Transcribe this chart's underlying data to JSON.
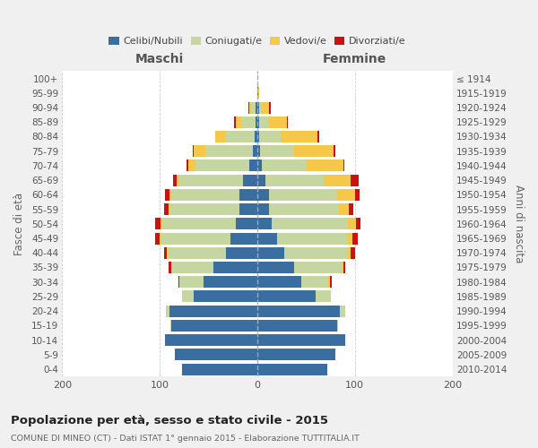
{
  "age_groups": [
    "0-4",
    "5-9",
    "10-14",
    "15-19",
    "20-24",
    "25-29",
    "30-34",
    "35-39",
    "40-44",
    "45-49",
    "50-54",
    "55-59",
    "60-64",
    "65-69",
    "70-74",
    "75-79",
    "80-84",
    "85-89",
    "90-94",
    "95-99",
    "100+"
  ],
  "birth_years": [
    "2010-2014",
    "2005-2009",
    "2000-2004",
    "1995-1999",
    "1990-1994",
    "1985-1989",
    "1980-1984",
    "1975-1979",
    "1970-1974",
    "1965-1969",
    "1960-1964",
    "1955-1959",
    "1950-1954",
    "1945-1949",
    "1940-1944",
    "1935-1939",
    "1930-1934",
    "1925-1929",
    "1920-1924",
    "1915-1919",
    "≤ 1914"
  ],
  "maschi": {
    "celibi": [
      77,
      85,
      95,
      88,
      90,
      65,
      55,
      45,
      32,
      28,
      22,
      18,
      18,
      15,
      8,
      5,
      3,
      2,
      2,
      0,
      0
    ],
    "coniugati": [
      0,
      0,
      0,
      1,
      3,
      12,
      25,
      42,
      60,
      70,
      75,
      72,
      70,
      65,
      55,
      48,
      30,
      15,
      4,
      0,
      0
    ],
    "vedovi": [
      0,
      0,
      0,
      0,
      1,
      0,
      0,
      1,
      1,
      2,
      2,
      1,
      2,
      3,
      8,
      12,
      10,
      5,
      2,
      0,
      0
    ],
    "divorziati": [
      0,
      0,
      0,
      0,
      0,
      0,
      1,
      3,
      3,
      5,
      6,
      5,
      5,
      3,
      2,
      1,
      0,
      2,
      1,
      0,
      0
    ]
  },
  "femmine": {
    "nubili": [
      72,
      80,
      90,
      82,
      85,
      60,
      45,
      38,
      28,
      20,
      15,
      12,
      12,
      8,
      5,
      3,
      2,
      2,
      2,
      1,
      0
    ],
    "coniugate": [
      0,
      0,
      0,
      1,
      5,
      15,
      28,
      48,
      65,
      72,
      78,
      72,
      70,
      60,
      45,
      35,
      22,
      10,
      2,
      0,
      0
    ],
    "vedove": [
      0,
      0,
      0,
      0,
      0,
      0,
      1,
      2,
      3,
      5,
      8,
      10,
      18,
      28,
      38,
      40,
      38,
      18,
      8,
      1,
      0
    ],
    "divorziate": [
      0,
      0,
      0,
      0,
      0,
      0,
      2,
      2,
      4,
      6,
      5,
      4,
      5,
      8,
      1,
      2,
      1,
      1,
      2,
      0,
      0
    ]
  },
  "colors": {
    "celibi": "#3a6da0",
    "coniugati": "#c5d6a0",
    "vedovi": "#f5c84a",
    "divorziati": "#cc1111"
  },
  "title": "Popolazione per età, sesso e stato civile - 2015",
  "subtitle": "COMUNE DI MINEO (CT) - Dati ISTAT 1° gennaio 2015 - Elaborazione TUTTITALIA.IT",
  "ylabel_left": "Fasce di età",
  "ylabel_right": "Anni di nascita",
  "xlim": 200,
  "bg_color": "#f0f0f0",
  "plot_bg": "#ffffff",
  "grid_color": "#cccccc",
  "maschi_label": "Maschi",
  "femmine_label": "Femmine",
  "legend_labels": [
    "Celibi/Nubili",
    "Coniugati/e",
    "Vedovi/e",
    "Divorziati/e"
  ]
}
